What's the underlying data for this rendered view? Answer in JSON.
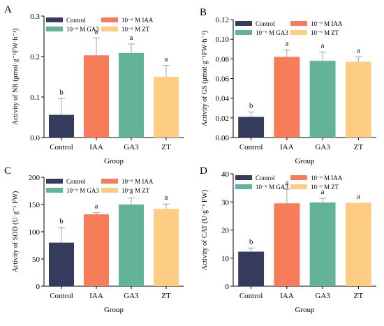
{
  "legend": {
    "control": "Control",
    "iaa": "10⁻⁶ M IAA",
    "ga3": "10⁻⁶ M GA3",
    "zt": "10⁻⁶ M ZT"
  },
  "colors": {
    "Control": "#353b5c",
    "IAA": "#f77d5a",
    "GA3": "#62b397",
    "ZT": "#fdcd84",
    "errorbar": "#a0a0a0",
    "axis": "#000000"
  },
  "chart_data": [
    {
      "panel_label": "A",
      "type": "bar",
      "categories": [
        "Control",
        "IAA",
        "GA3",
        "ZT"
      ],
      "values": [
        0.056,
        0.203,
        0.209,
        0.15
      ],
      "errors": [
        0.04,
        0.043,
        0.022,
        0.028
      ],
      "significance": [
        "b",
        "a",
        "a",
        "a"
      ],
      "xlabel": "Group",
      "ylabel": "Activity of NR (μmol·g⁻¹FW·h⁻¹)",
      "ylim": [
        0,
        0.3
      ],
      "yticks": [
        "0.0",
        "0.1",
        "0.2",
        "0.3"
      ],
      "grid": false,
      "legend_position": "top-left"
    },
    {
      "panel_label": "B",
      "type": "bar",
      "categories": [
        "Control",
        "IAA",
        "GA3",
        "ZT"
      ],
      "values": [
        0.021,
        0.082,
        0.078,
        0.077
      ],
      "errors": [
        0.005,
        0.007,
        0.009,
        0.005
      ],
      "significance": [
        "b",
        "a",
        "a",
        "a"
      ],
      "xlabel": "Group",
      "ylabel": "Activity of GS (μmol·g⁻¹FW·h⁻¹)",
      "ylim": [
        0,
        0.12
      ],
      "yticks": [
        "0.00",
        "0.02",
        "0.04",
        "0.06",
        "0.08",
        "0.10",
        "0.12"
      ],
      "grid": false,
      "legend_position": "top-left"
    },
    {
      "panel_label": "C",
      "type": "bar",
      "categories": [
        "Control",
        "IAA",
        "GA3",
        "ZT"
      ],
      "values": [
        80,
        132,
        150,
        142
      ],
      "errors": [
        28,
        3,
        12,
        9
      ],
      "significance": [
        "b",
        "a",
        "a",
        "a"
      ],
      "xlabel": "Group",
      "ylabel": "Activity of SOD (U·g⁻¹ FW)",
      "ylim": [
        0,
        200
      ],
      "yticks": [
        "0",
        "50",
        "100",
        "150",
        "200"
      ],
      "grid": false,
      "legend_position": "top-left"
    },
    {
      "panel_label": "D",
      "type": "bar",
      "categories": [
        "Control",
        "IAA",
        "GA3",
        "ZT"
      ],
      "values": [
        12.3,
        29.5,
        29.8,
        29.7
      ],
      "errors": [
        1.3,
        5.0,
        1.5,
        0.0
      ],
      "significance": [
        "b",
        "a",
        "a",
        "a"
      ],
      "xlabel": "Group",
      "ylabel": "Activity of CAT (U·g⁻¹ FW)",
      "ylim": [
        0,
        40
      ],
      "yticks": [
        "0",
        "10",
        "20",
        "30",
        "40"
      ],
      "grid": false,
      "legend_position": "top-left"
    }
  ]
}
